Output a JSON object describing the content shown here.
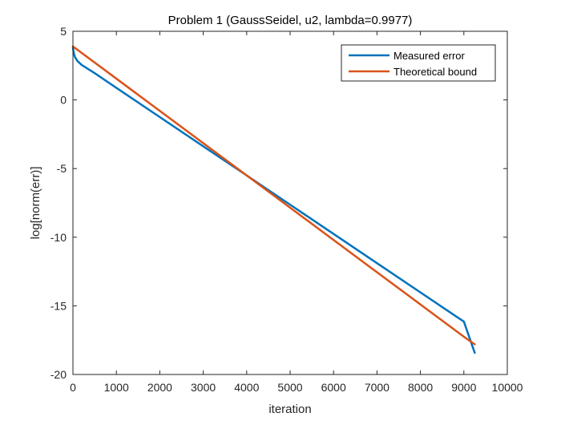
{
  "chart_data": {
    "type": "line",
    "title": "Problem 1 (GaussSeidel, u2, lambda=0.9977)",
    "xlabel": "iteration",
    "ylabel": "log[norm(err)]",
    "xlim": [
      0,
      10000
    ],
    "ylim": [
      -20,
      5
    ],
    "xticks": [
      0,
      1000,
      2000,
      3000,
      4000,
      5000,
      6000,
      7000,
      8000,
      9000,
      10000
    ],
    "xtick_labels": [
      "0",
      "1000",
      "2000",
      "3000",
      "4000",
      "5000",
      "6000",
      "7000",
      "8000",
      "9000",
      "10000"
    ],
    "yticks": [
      5,
      0,
      -5,
      -10,
      -15,
      -20
    ],
    "ytick_labels": [
      "5",
      "0",
      "-5",
      "-10",
      "-15",
      "-20"
    ],
    "grid": false,
    "legend_position": "top-right",
    "series": [
      {
        "name": "Measured error",
        "color": "#0072BD",
        "x": [
          0,
          10,
          25,
          50,
          100,
          200,
          500,
          1000,
          2000,
          3000,
          4000,
          5000,
          6000,
          7000,
          8000,
          9000,
          9250
        ],
        "y": [
          3.8,
          3.6,
          3.35,
          3.1,
          2.85,
          2.55,
          1.95,
          0.88,
          -1.25,
          -3.38,
          -5.5,
          -7.63,
          -9.76,
          -11.89,
          -14.02,
          -16.15,
          -18.42
        ]
      },
      {
        "name": "Theoretical bound",
        "color": "#D95319",
        "x": [
          0,
          1000,
          2000,
          3000,
          4000,
          5000,
          6000,
          7000,
          8000,
          9000,
          9250
        ],
        "y": [
          3.9,
          1.55,
          -0.8,
          -3.15,
          -5.5,
          -7.85,
          -10.2,
          -12.55,
          -14.9,
          -17.25,
          -17.8
        ]
      }
    ]
  }
}
